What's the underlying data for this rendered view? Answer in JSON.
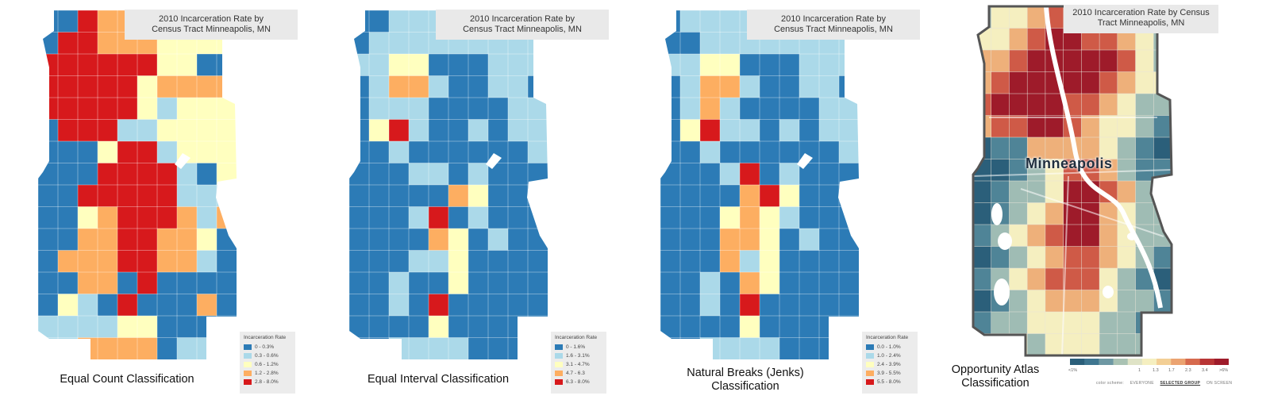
{
  "panels": [
    {
      "id": "equal-count",
      "title_line1": "2010 Incarceration Rate by",
      "title_line2": "Census Tract Minneapolis, MN",
      "legend_title": "Incarceration Rate",
      "legend": [
        "0 - 0.3%",
        "0.3 - 0.6%",
        "0.6 - 1.2%",
        "1.2 - 2.8%",
        "2.8 - 8.0%"
      ],
      "caption_line1": "Equal Count Classification",
      "caption_line2": ""
    },
    {
      "id": "equal-interval",
      "title_line1": "2010 Incarceration Rate by",
      "title_line2": "Census Tract Minneapolis, MN",
      "legend_title": "Incarceration Rate",
      "legend": [
        "0 - 1.6%",
        "1.6 - 3.1%",
        "3.1 - 4.7%",
        "4.7 - 6.3",
        "6.3 - 8.0%"
      ],
      "caption_line1": "Equal Interval Classification",
      "caption_line2": ""
    },
    {
      "id": "natural-breaks",
      "title_line1": "2010 Incarceration Rate by",
      "title_line2": "Census Tract Minneapolis, MN",
      "legend_title": "Incarceration Rate",
      "legend": [
        "0.0 - 1.0%",
        "1.0 - 2.4%",
        "2.4 - 3.9%",
        "3.9 - 5.5%",
        "5.5 - 8.0%"
      ],
      "caption_line1": "Natural Breaks (Jenks)",
      "caption_line2": "Classification"
    },
    {
      "id": "opportunity-atlas",
      "title_line1": "2010 Incarceration Rate by Census",
      "title_line2": "Tract Minneapolis, MN",
      "city_label": "Minneapolis",
      "scale_ticks": [
        "<1%",
        "1",
        "1.3",
        "1.7",
        "2.3",
        "3.4",
        ">6%"
      ],
      "scheme_label": "color scheme:",
      "scheme_options": [
        "EVERYONE",
        "SELECTED GROUP",
        "ON SCREEN"
      ],
      "caption_line1": "Opportunity Atlas",
      "caption_line2": "Classification"
    }
  ],
  "colors": {
    "class1": "#2c7bb6",
    "class2": "#abd9e9",
    "class3": "#ffffbf",
    "class4": "#fdae61",
    "class5": "#d7191c",
    "oa_low": "#2b5f7a",
    "oa_mid": "#f5efc0",
    "oa_high": "#9e1b2a"
  },
  "maps": {
    "equal-count": [
      "1154442333",
      "1554443333",
      "5555553311",
      "5555534444",
      "5555532333",
      "1555223333",
      "1113552333",
      "1115555213",
      "1155555222",
      "1134555424",
      "1144554431",
      "1444554421",
      "1144151111",
      "1321511141",
      "2222331111",
      "2244441222"
    ],
    "equal-interval": [
      "1122222222",
      "1222222222",
      "2233111222",
      "1244211221",
      "1222111122",
      "1352112122",
      "1121111112",
      "1112212111",
      "1111143111",
      "1112512111",
      "1111431211",
      "1112231111",
      "1121131111",
      "1121511111",
      "1111311111",
      "1122221111"
    ],
    "natural-breaks": [
      "1222222222",
      "1122222222",
      "2233111222",
      "1244211221",
      "1242111122",
      "1352212122",
      "1121111112",
      "1112512111",
      "1111453111",
      "1113432111",
      "1114431211",
      "1114231111",
      "1121431111",
      "1121511111",
      "1111311111",
      "1122221111"
    ],
    "opportunity-atlas": [
      "34456655433",
      "44567766543",
      "55677777643",
      "56777776544",
      "67777665433",
      "56677654432",
      "12255554321",
      "11234665322",
      "12334776532",
      "12345775433",
      "23456775433",
      "12345665432",
      "23456664321",
      "12345554332",
      "23344443322",
      "33434443333"
    ]
  }
}
